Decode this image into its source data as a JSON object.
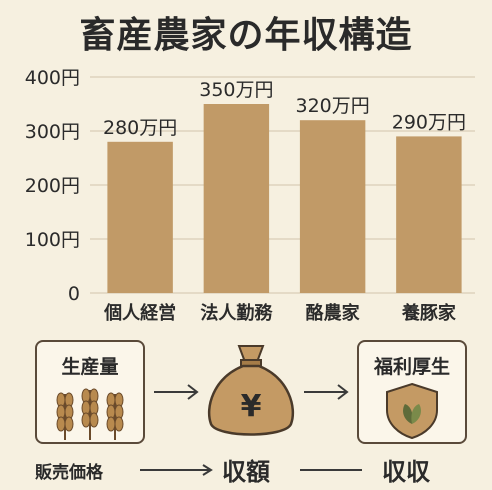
{
  "title": "畜産農家の年収構造",
  "chart_data": {
    "type": "bar",
    "title": "畜産農家の年収構造",
    "categories": [
      "個人経営",
      "法人勤務",
      "酪農家",
      "養豚家"
    ],
    "values": [
      280,
      350,
      320,
      290
    ],
    "value_labels": [
      "280万円",
      "350万円",
      "320万円",
      "290万円"
    ],
    "y_ticks": [
      0,
      100,
      200,
      300,
      400
    ],
    "y_tick_labels": [
      "0",
      "100円",
      "200円",
      "300円",
      "400円"
    ],
    "ylim": [
      0,
      400
    ],
    "grid": true,
    "colors": {
      "bar": "#c19a67",
      "grid": "#ddd3bd",
      "text": "#2b2b2b"
    }
  },
  "flow": {
    "production_label": "生産量",
    "wheat_icon": "wheat-icon",
    "moneybag_icon": "money-bag-icon",
    "yen_symbol": "¥",
    "benefits_label": "福利厚生",
    "shield_icon": "shield-leaf-icon",
    "price_label": "販売価格",
    "revenue_label": "収額",
    "income_label": "収収"
  }
}
